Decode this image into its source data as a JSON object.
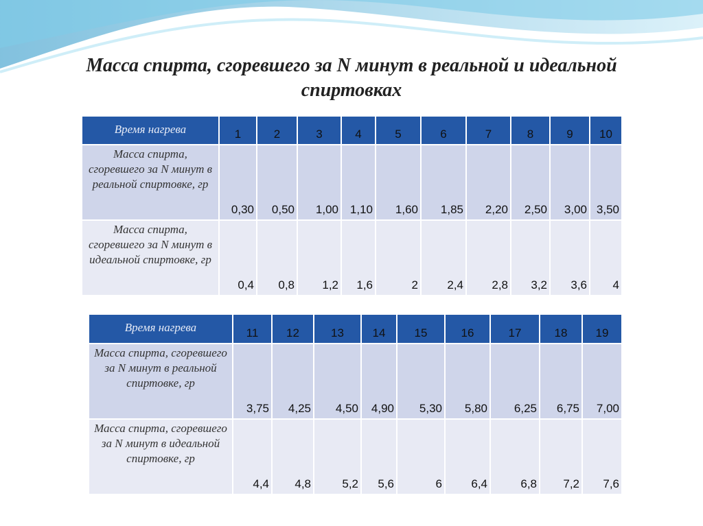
{
  "title": "Масса спирта, сгоревшего за N минут в реальной и идеальной спиртовках",
  "tables": [
    {
      "header": [
        "Время нагрева",
        "1",
        "2",
        "3",
        "4",
        "5",
        "6",
        "7",
        "8",
        "9",
        "10"
      ],
      "rows": [
        [
          "Масса  спирта, сгоревшего за N минут в реальной спиртовке, гр",
          "0,30",
          "0,50",
          "1,00",
          "1,10",
          "1,60",
          "1,85",
          "2,20",
          "2,50",
          "3,00",
          "3,50"
        ],
        [
          "Масса  спирта, сгоревшего за N минут в идеальной спиртовке, гр",
          "0,4",
          "0,8",
          "1,2",
          "1,6",
          "2",
          "2,4",
          "2,8",
          "3,2",
          "3,6",
          "4"
        ]
      ]
    },
    {
      "header": [
        "Время нагрева",
        "11",
        "12",
        "13",
        "14",
        "15",
        "16",
        "17",
        "18",
        "19"
      ],
      "rows": [
        [
          "Масса  спирта, сгоревшего за N минут в реальной спиртовке, гр",
          "3,75",
          "4,25",
          "4,50",
          "4,90",
          "5,30",
          "5,80",
          "6,25",
          "6,75",
          "7,00"
        ],
        [
          "Масса  спирта, сгоревшего за N минут в идеальной спиртовке, гр",
          "4,4",
          "4,8",
          "5,2",
          "5,6",
          "6",
          "6,4",
          "6,8",
          "7,2",
          "7,6"
        ]
      ]
    }
  ]
}
